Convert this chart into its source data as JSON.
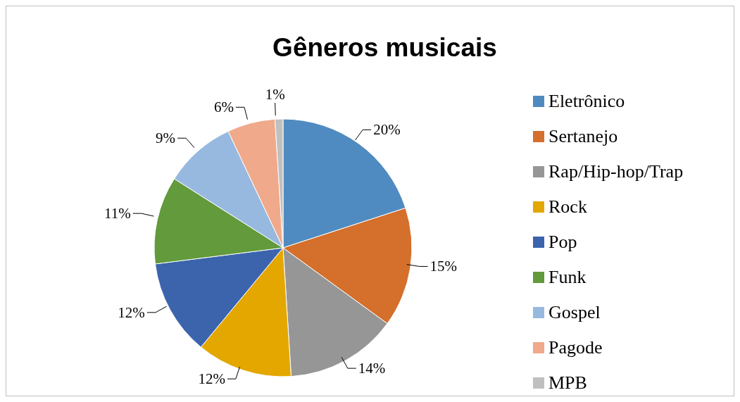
{
  "chart_data": {
    "type": "pie",
    "title": "Gêneros musicais",
    "categories": [
      "Eletrônico",
      "Sertanejo",
      "Rap/Hip-hop/Trap",
      "Rock",
      "Pop",
      "Funk",
      "Gospel",
      "Pagode",
      "MPB"
    ],
    "values": [
      20,
      15,
      14,
      12,
      12,
      11,
      9,
      6,
      1
    ],
    "value_labels": [
      "20%",
      "15%",
      "14%",
      "12%",
      "12%",
      "11%",
      "9%",
      "6%",
      "1%"
    ],
    "colors": [
      "#4f8bc0",
      "#d46f2c",
      "#969696",
      "#e3a700",
      "#3b64ad",
      "#629a3c",
      "#98b9df",
      "#f0a98a",
      "#c0c0c0"
    ],
    "legend": "right"
  }
}
